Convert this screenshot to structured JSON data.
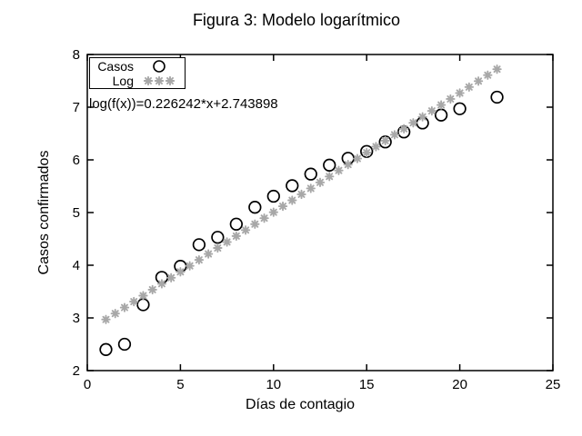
{
  "figure": {
    "background": "#ffffff",
    "frame_color": "#000000"
  },
  "chart_data": {
    "type": "scatter",
    "title": "Figura 3: Modelo logarítmico",
    "xlabel": "Días de contagio",
    "ylabel": "Casos confirmados",
    "xlim": [
      0,
      25
    ],
    "ylim": [
      2,
      8
    ],
    "xticks": [
      0,
      5,
      10,
      15,
      20,
      25
    ],
    "yticks": [
      2,
      3,
      4,
      5,
      6,
      7,
      8
    ],
    "grid": false,
    "legend_position": "top-left",
    "annotation": "log(f(x))=0.226242*x+2.743898",
    "series": [
      {
        "name": "Casos",
        "marker": "open-circle",
        "color": "#000000",
        "points": [
          [
            1,
            2.4
          ],
          [
            2,
            2.5
          ],
          [
            3,
            3.25
          ],
          [
            4,
            3.77
          ],
          [
            5,
            3.98
          ],
          [
            6,
            4.39
          ],
          [
            7,
            4.53
          ],
          [
            8,
            4.78
          ],
          [
            9,
            5.1
          ],
          [
            10,
            5.31
          ],
          [
            11,
            5.51
          ],
          [
            12,
            5.73
          ],
          [
            13,
            5.9
          ],
          [
            14,
            6.03
          ],
          [
            15,
            6.16
          ],
          [
            16,
            6.34
          ],
          [
            17,
            6.53
          ],
          [
            18,
            6.7
          ],
          [
            19,
            6.85
          ],
          [
            20,
            6.97
          ],
          [
            22,
            7.19
          ]
        ]
      },
      {
        "name": "Log",
        "marker": "asterisk",
        "color": "#a8a8a8",
        "model": "log(f(x)) = 0.226242*x + 2.743898",
        "slope": 0.226242,
        "intercept": 2.743898,
        "x_start": 1,
        "x_end": 22,
        "x_step": 0.5
      }
    ]
  }
}
